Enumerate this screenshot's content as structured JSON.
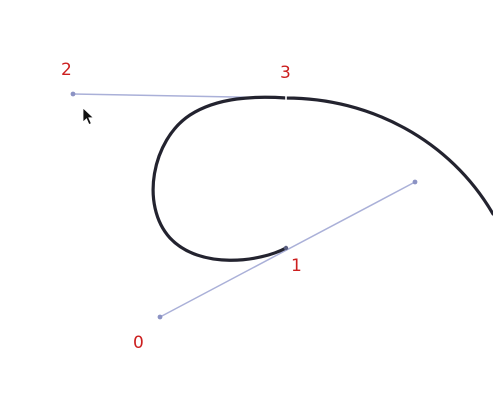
{
  "canvas": {
    "background": "#ffffff",
    "curve_color": "#23232f",
    "handle_color": "#aab0d8",
    "label_color": "#cc1f1f"
  },
  "control_points": [
    {
      "label": "0"
    },
    {
      "label": "1"
    },
    {
      "label": "2"
    },
    {
      "label": "3"
    }
  ],
  "cursor": {
    "icon": "arrow-pointer-icon"
  }
}
